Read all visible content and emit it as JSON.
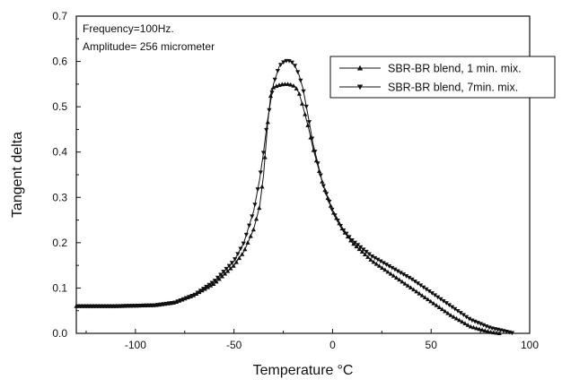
{
  "chart_data": {
    "type": "line",
    "title": "",
    "xlabel": "Temperature",
    "xlabel_unit": "°C",
    "ylabel": "Tangent delta",
    "xlim": [
      -130,
      100
    ],
    "ylim": [
      0.0,
      0.7
    ],
    "xticks": [
      -100,
      -50,
      0,
      50,
      100
    ],
    "yticks": [
      0.0,
      0.1,
      0.2,
      0.3,
      0.4,
      0.5,
      0.6,
      0.7
    ],
    "xtick_labels": [
      "-100",
      "-50",
      "0",
      "50",
      "100"
    ],
    "ytick_labels": [
      "0.0",
      "0.1",
      "0.2",
      "0.3",
      "0.4",
      "0.5",
      "0.6",
      "0.7"
    ],
    "grid": false,
    "legend_position": "top-right",
    "annotations": [
      "Frequency=100Hz.",
      "Amplitude= 256 micrometer"
    ],
    "series": [
      {
        "name": "SBR-BR blend, 1 min. mix.",
        "marker": "triangle-up",
        "x": [
          -130,
          -110,
          -90,
          -80,
          -70,
          -60,
          -50,
          -45,
          -40,
          -37,
          -35,
          -33,
          -31,
          -29,
          -27,
          -25,
          -22,
          -19,
          -17,
          -15,
          -12,
          -10,
          -5,
          0,
          5,
          10,
          20,
          30,
          40,
          50,
          60,
          70,
          80,
          85
        ],
        "y": [
          0.06,
          0.06,
          0.062,
          0.068,
          0.085,
          0.11,
          0.15,
          0.18,
          0.23,
          0.28,
          0.35,
          0.46,
          0.54,
          0.545,
          0.548,
          0.55,
          0.55,
          0.545,
          0.53,
          0.5,
          0.45,
          0.41,
          0.33,
          0.27,
          0.23,
          0.2,
          0.16,
          0.13,
          0.1,
          0.07,
          0.04,
          0.015,
          0.003,
          0.0
        ]
      },
      {
        "name": "SBR-BR blend, 7min. mix.",
        "marker": "triangle-down",
        "x": [
          -130,
          -110,
          -90,
          -80,
          -70,
          -60,
          -50,
          -45,
          -40,
          -37,
          -35,
          -33,
          -30,
          -27,
          -25,
          -23,
          -21,
          -19,
          -17,
          -15,
          -12,
          -10,
          -5,
          0,
          5,
          10,
          20,
          30,
          40,
          50,
          60,
          70,
          80,
          90,
          92
        ],
        "y": [
          0.06,
          0.06,
          0.062,
          0.068,
          0.085,
          0.115,
          0.16,
          0.2,
          0.27,
          0.34,
          0.4,
          0.47,
          0.55,
          0.59,
          0.598,
          0.602,
          0.6,
          0.59,
          0.57,
          0.54,
          0.47,
          0.42,
          0.33,
          0.27,
          0.23,
          0.205,
          0.17,
          0.145,
          0.12,
          0.09,
          0.06,
          0.03,
          0.012,
          0.002,
          0.0
        ]
      }
    ]
  }
}
